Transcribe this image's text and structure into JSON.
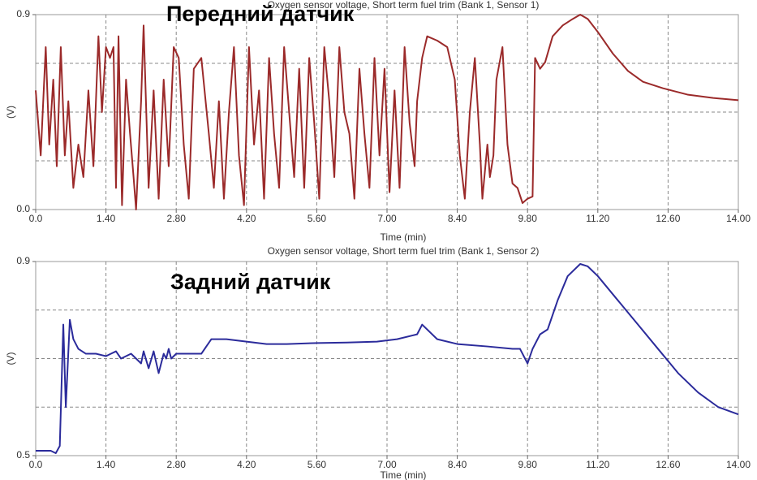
{
  "chart_data": [
    {
      "type": "line",
      "title": "Oxygen sensor voltage, Short term fuel trim (Bank 1, Sensor 1)",
      "annotation": "Передний датчик",
      "ylabel": "(V)",
      "xlabel": "Time (min)",
      "xlim": [
        0,
        14
      ],
      "ylim": [
        0,
        0.9
      ],
      "xticks": [
        {
          "value": 0,
          "label": "0.0"
        },
        {
          "value": 1.4,
          "label": "1.40"
        },
        {
          "value": 2.8,
          "label": "2.80"
        },
        {
          "value": 4.2,
          "label": "4.20"
        },
        {
          "value": 5.6,
          "label": "5.60"
        },
        {
          "value": 7,
          "label": "7.00"
        },
        {
          "value": 8.4,
          "label": "8.40"
        },
        {
          "value": 9.8,
          "label": "9.80"
        },
        {
          "value": 11.2,
          "label": "11.20"
        },
        {
          "value": 12.6,
          "label": "12.60"
        },
        {
          "value": 14,
          "label": "14.00"
        }
      ],
      "yticks": [
        {
          "value": 0,
          "label": "0.0"
        },
        0.9
      ],
      "grid": true,
      "x": [
        0.0,
        0.1,
        0.2,
        0.27,
        0.35,
        0.42,
        0.5,
        0.58,
        0.65,
        0.75,
        0.85,
        0.95,
        1.05,
        1.15,
        1.25,
        1.32,
        1.4,
        1.48,
        1.55,
        1.6,
        1.65,
        1.72,
        1.8,
        1.88,
        1.95,
        2.0,
        2.1,
        2.15,
        2.25,
        2.35,
        2.45,
        2.55,
        2.65,
        2.75,
        2.85,
        2.95,
        3.05,
        3.15,
        3.3,
        3.45,
        3.55,
        3.65,
        3.75,
        3.85,
        3.95,
        4.05,
        4.15,
        4.25,
        4.35,
        4.45,
        4.55,
        4.65,
        4.75,
        4.85,
        4.95,
        5.05,
        5.15,
        5.25,
        5.35,
        5.45,
        5.55,
        5.65,
        5.75,
        5.85,
        5.95,
        6.05,
        6.15,
        6.25,
        6.35,
        6.45,
        6.55,
        6.65,
        6.75,
        6.85,
        6.95,
        7.05,
        7.15,
        7.25,
        7.35,
        7.45,
        7.55,
        7.6,
        7.7,
        7.8,
        8.0,
        8.2,
        8.35,
        8.45,
        8.55,
        8.65,
        8.75,
        8.85,
        8.9,
        9.0,
        9.05,
        9.12,
        9.18,
        9.3,
        9.4,
        9.5,
        9.6,
        9.7,
        9.8,
        9.9,
        9.95,
        10.05,
        10.15,
        10.3,
        10.5,
        10.7,
        10.85,
        11.0,
        11.2,
        11.5,
        11.8,
        12.1,
        12.5,
        13.0,
        13.5,
        14.0
      ],
      "series": [
        {
          "color": "#9b2a2a",
          "values": [
            0.55,
            0.25,
            0.75,
            0.3,
            0.6,
            0.2,
            0.75,
            0.25,
            0.5,
            0.1,
            0.3,
            0.15,
            0.55,
            0.2,
            0.8,
            0.45,
            0.75,
            0.7,
            0.75,
            0.1,
            0.8,
            0.02,
            0.6,
            0.35,
            0.15,
            0.0,
            0.5,
            0.85,
            0.1,
            0.55,
            0.05,
            0.6,
            0.2,
            0.75,
            0.7,
            0.3,
            0.05,
            0.65,
            0.7,
            0.35,
            0.1,
            0.5,
            0.05,
            0.45,
            0.75,
            0.25,
            0.02,
            0.75,
            0.3,
            0.55,
            0.05,
            0.7,
            0.35,
            0.1,
            0.75,
            0.45,
            0.15,
            0.65,
            0.1,
            0.7,
            0.4,
            0.05,
            0.75,
            0.5,
            0.15,
            0.75,
            0.45,
            0.35,
            0.05,
            0.65,
            0.35,
            0.1,
            0.7,
            0.25,
            0.65,
            0.08,
            0.55,
            0.1,
            0.75,
            0.4,
            0.2,
            0.5,
            0.7,
            0.8,
            0.78,
            0.75,
            0.6,
            0.25,
            0.05,
            0.45,
            0.7,
            0.3,
            0.05,
            0.3,
            0.15,
            0.25,
            0.6,
            0.75,
            0.3,
            0.12,
            0.1,
            0.03,
            0.05,
            0.06,
            0.7,
            0.65,
            0.68,
            0.8,
            0.85,
            0.88,
            0.9,
            0.88,
            0.82,
            0.72,
            0.64,
            0.59,
            0.56,
            0.53,
            0.515,
            0.505
          ]
        }
      ]
    },
    {
      "type": "line",
      "title": "Oxygen sensor voltage, Short term fuel trim (Bank 1, Sensor 2)",
      "annotation": "Задний датчик",
      "ylabel": "(V)",
      "xlabel": "Time (min)",
      "xlim": [
        0,
        14
      ],
      "ylim": [
        0.5,
        0.9
      ],
      "xticks": [
        {
          "value": 0,
          "label": "0.0"
        },
        {
          "value": 1.4,
          "label": "1.40"
        },
        {
          "value": 2.8,
          "label": "2.80"
        },
        {
          "value": 4.2,
          "label": "4.20"
        },
        {
          "value": 5.6,
          "label": "5.60"
        },
        {
          "value": 7,
          "label": "7.00"
        },
        {
          "value": 8.4,
          "label": "8.40"
        },
        {
          "value": 9.8,
          "label": "9.80"
        },
        {
          "value": 11.2,
          "label": "11.20"
        },
        {
          "value": 12.6,
          "label": "12.60"
        },
        {
          "value": 14,
          "label": "14.00"
        }
      ],
      "yticks": [
        0.5,
        0.9
      ],
      "grid": true,
      "x": [
        0.0,
        0.3,
        0.4,
        0.48,
        0.55,
        0.6,
        0.68,
        0.75,
        0.85,
        1.0,
        1.2,
        1.4,
        1.5,
        1.6,
        1.7,
        1.8,
        1.9,
        2.0,
        2.1,
        2.15,
        2.25,
        2.35,
        2.45,
        2.55,
        2.6,
        2.65,
        2.7,
        2.8,
        3.0,
        3.3,
        3.5,
        3.8,
        4.2,
        4.6,
        5.0,
        5.6,
        6.2,
        6.8,
        7.2,
        7.6,
        7.7,
        8.0,
        8.4,
        9.0,
        9.5,
        9.65,
        9.8,
        9.9,
        10.05,
        10.2,
        10.4,
        10.6,
        10.85,
        11.0,
        11.2,
        11.6,
        12.0,
        12.4,
        12.8,
        13.2,
        13.6,
        14.0
      ],
      "series": [
        {
          "color": "#2b2b9b",
          "values": [
            0.51,
            0.51,
            0.505,
            0.52,
            0.77,
            0.6,
            0.78,
            0.74,
            0.72,
            0.71,
            0.71,
            0.705,
            0.71,
            0.715,
            0.7,
            0.705,
            0.71,
            0.7,
            0.69,
            0.715,
            0.68,
            0.715,
            0.67,
            0.71,
            0.7,
            0.72,
            0.7,
            0.71,
            0.71,
            0.71,
            0.74,
            0.74,
            0.735,
            0.73,
            0.73,
            0.732,
            0.733,
            0.735,
            0.74,
            0.75,
            0.77,
            0.74,
            0.73,
            0.725,
            0.72,
            0.72,
            0.69,
            0.72,
            0.75,
            0.76,
            0.82,
            0.87,
            0.895,
            0.89,
            0.87,
            0.82,
            0.77,
            0.72,
            0.67,
            0.63,
            0.6,
            0.585
          ]
        }
      ]
    }
  ]
}
